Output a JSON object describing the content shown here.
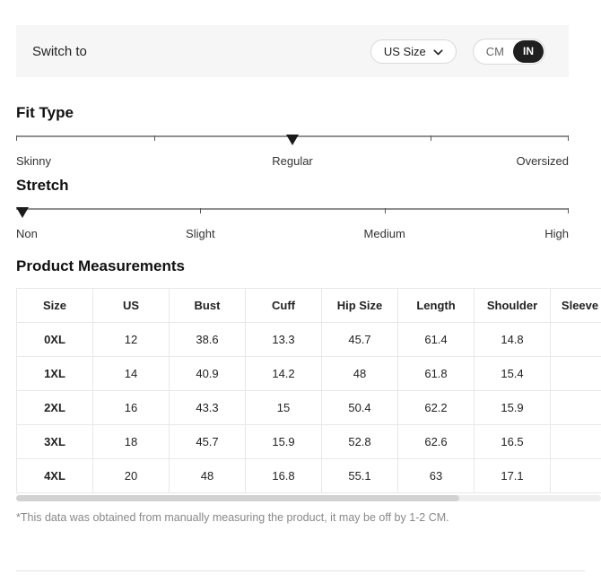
{
  "topbar": {
    "switch_label": "Switch to",
    "size_select_value": "US Size",
    "unit_cm_label": "CM",
    "unit_in_label": "IN",
    "selected_unit": "IN"
  },
  "fit_type": {
    "title": "Fit Type",
    "labels": [
      "Skinny",
      "Regular",
      "Oversized"
    ],
    "selected": "Regular",
    "marker_position_pct": 50
  },
  "stretch": {
    "title": "Stretch",
    "labels": [
      "Non",
      "Slight",
      "Medium",
      "High"
    ],
    "selected": "Non",
    "marker_position_pct": 0
  },
  "measurements": {
    "title": "Product Measurements",
    "columns": [
      "Size",
      "US",
      "Bust",
      "Cuff",
      "Hip Size",
      "Length",
      "Shoulder",
      "Sleeve Length"
    ],
    "rows": [
      [
        "0XL",
        "12",
        "38.6",
        "13.3",
        "45.7",
        "61.4",
        "14.8",
        ""
      ],
      [
        "1XL",
        "14",
        "40.9",
        "14.2",
        "48",
        "61.8",
        "15.4",
        ""
      ],
      [
        "2XL",
        "16",
        "43.3",
        "15",
        "50.4",
        "62.2",
        "15.9",
        ""
      ],
      [
        "3XL",
        "18",
        "45.7",
        "15.9",
        "52.8",
        "62.6",
        "16.5",
        ""
      ],
      [
        "4XL",
        "20",
        "48",
        "16.8",
        "55.1",
        "63",
        "17.1",
        ""
      ]
    ],
    "footnote": "*This data was obtained from manually measuring the product, it may be off by 1-2 CM."
  },
  "colors": {
    "topbar_bg": "#f6f6f6",
    "toggle_active_bg": "#1f1f1f",
    "toggle_active_text": "#ffffff",
    "marker": "#1a1a1a",
    "table_border": "#e8e8e8"
  }
}
